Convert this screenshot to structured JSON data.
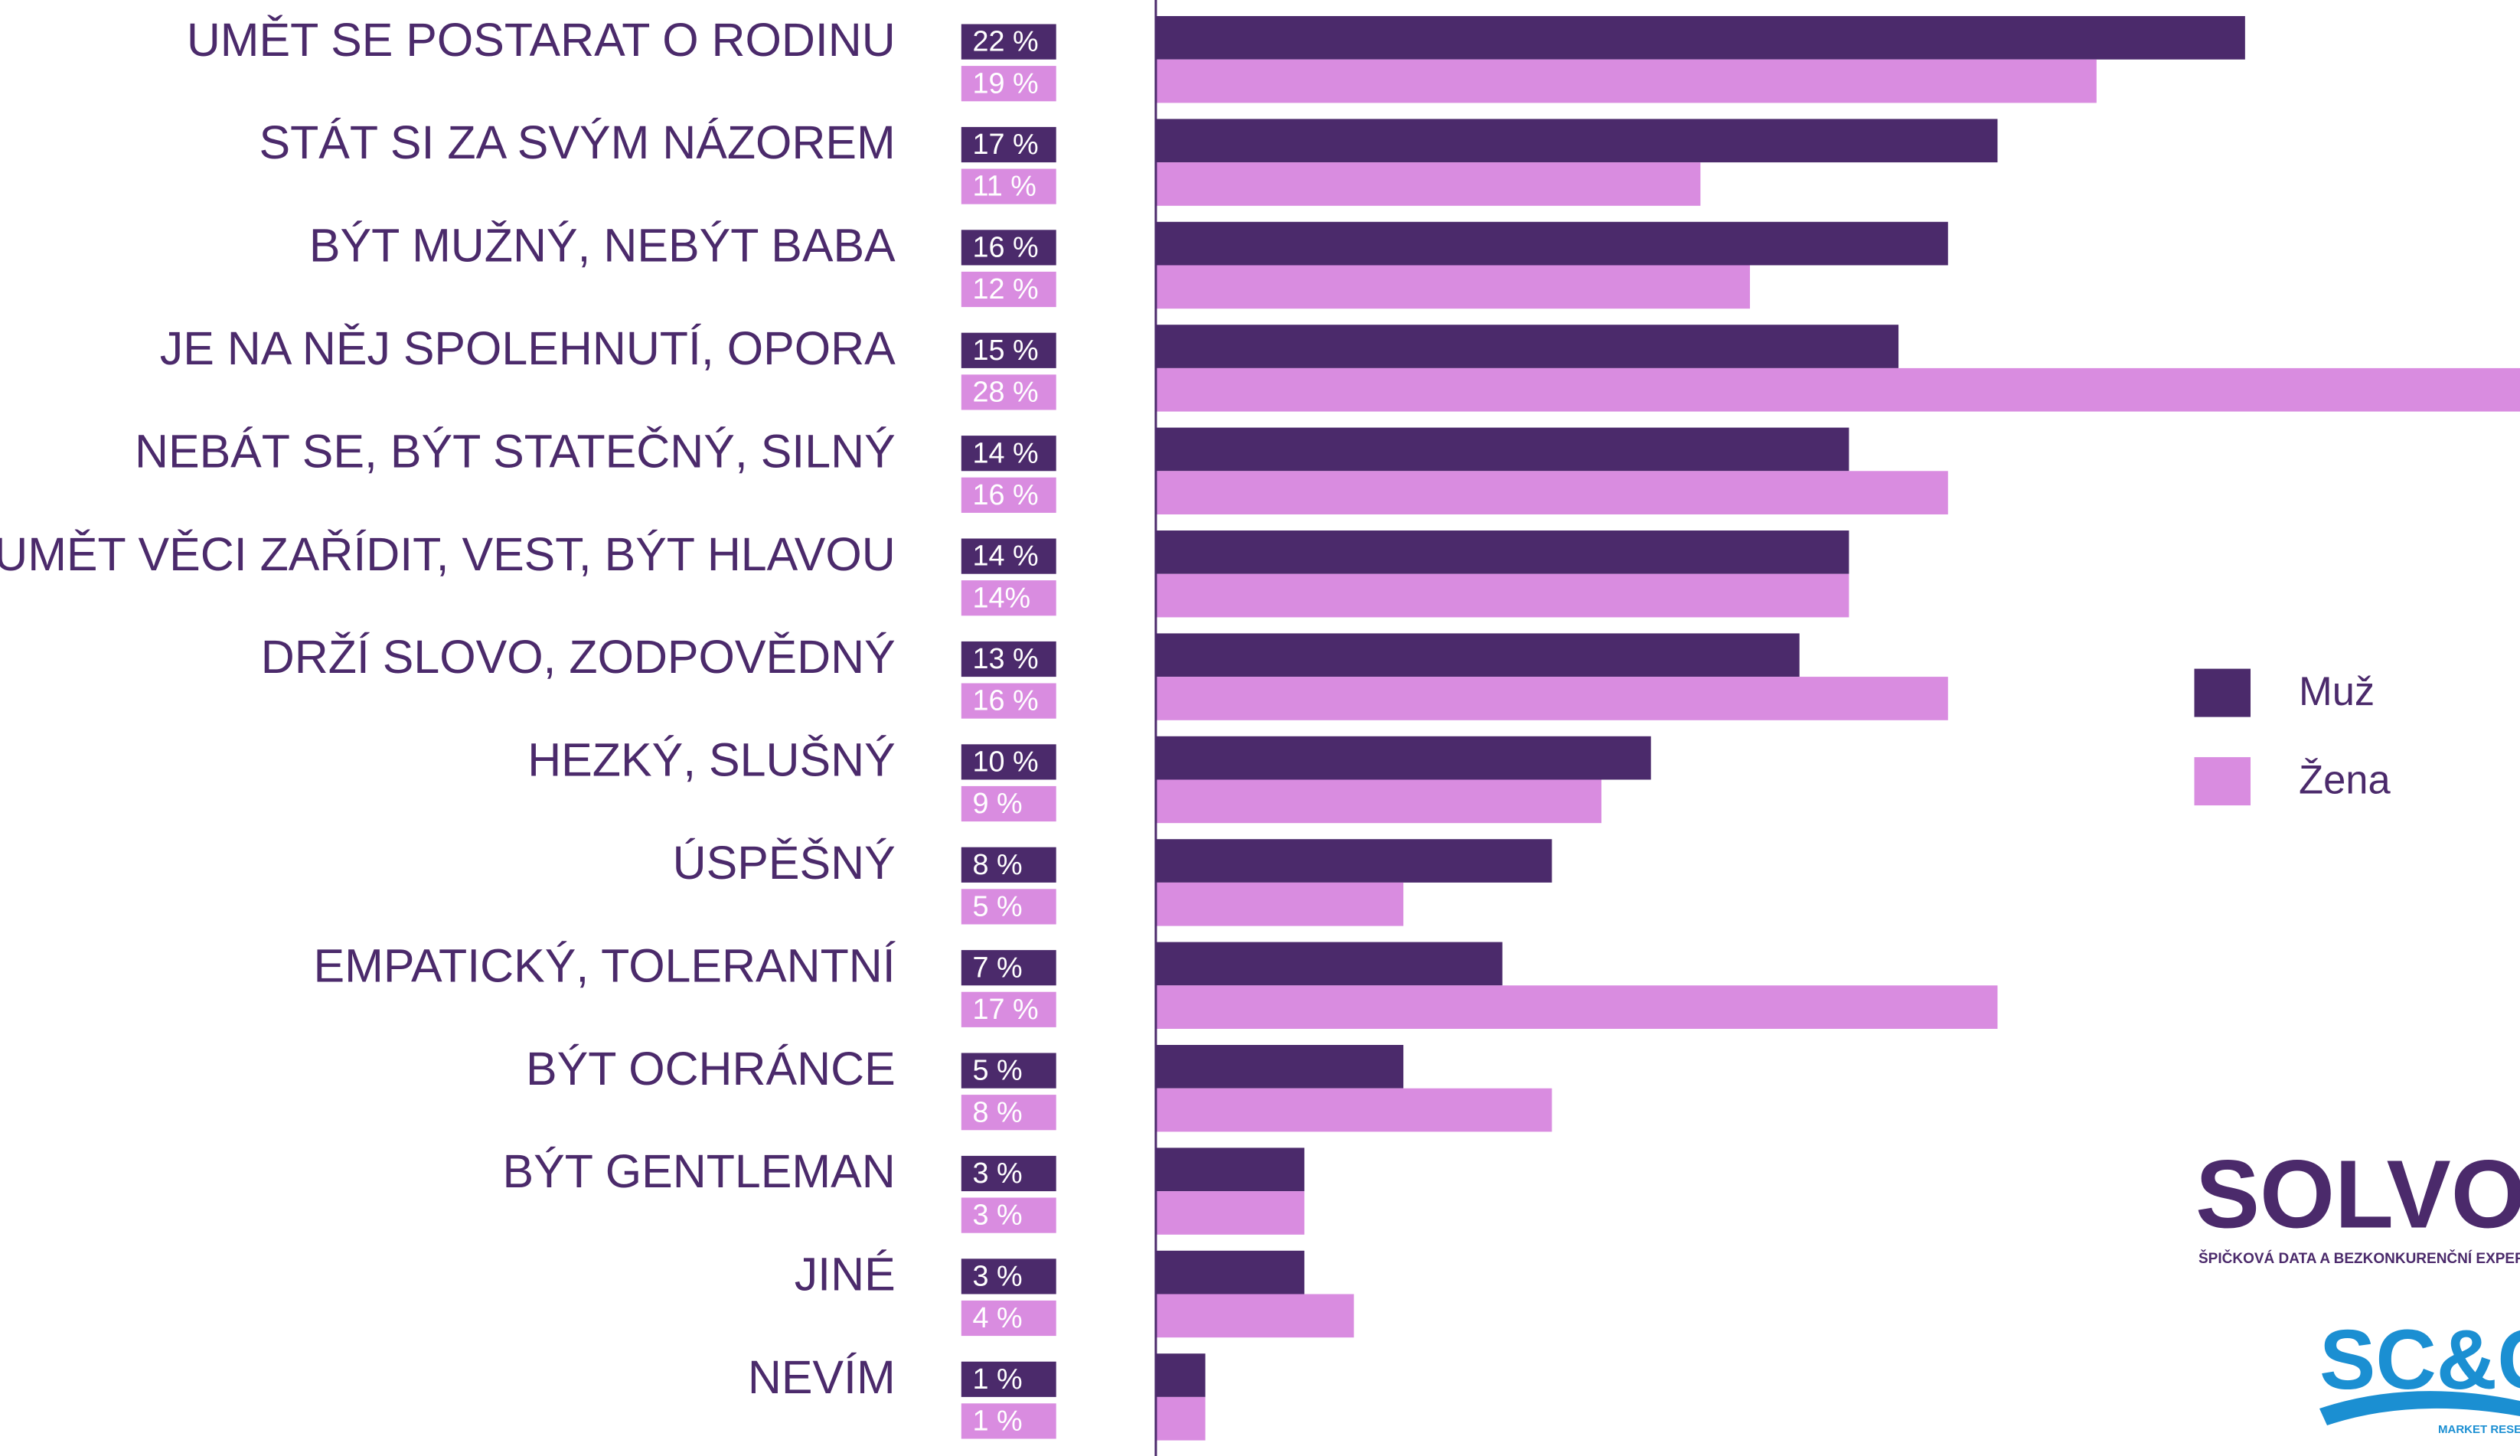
{
  "chart_data": {
    "type": "hbar",
    "categories": [
      "UMĚT SE POSTARAT O RODINU",
      "STÁT SI ZA SVÝM NÁZOREM",
      "BÝT MUŽNÝ, NEBÝT BABA",
      "JE NA NĚJ SPOLEHNUTÍ, OPORA",
      "NEBÁT SE, BÝT STATEČNÝ, SILNÝ",
      "UMĚT VĚCI ZAŘÍDIT, VEST, BÝT HLAVOU",
      "DRŽÍ SLOVO, ZODPOVĚDNÝ",
      "HEZKÝ, SLUŠNÝ",
      "ÚSPĚŠNÝ",
      "EMPATICKÝ, TOLERANTNÍ",
      "BÝT OCHRÁNCE",
      "BÝT GENTLEMAN",
      "JINÉ",
      "NEVÍM"
    ],
    "series": [
      {
        "name": "Muž",
        "color": "#4b2a6b",
        "values": [
          22,
          17,
          16,
          15,
          14,
          14,
          13,
          10,
          8,
          7,
          5,
          3,
          3,
          1
        ],
        "value_labels": [
          "22 %",
          "17 %",
          "16 %",
          "15 %",
          "14 %",
          "14 %",
          "13 %",
          "10 %",
          "8 %",
          "7 %",
          "5 %",
          "3 %",
          "3 %",
          "1 %"
        ]
      },
      {
        "name": "Žena",
        "color": "#d98ce0",
        "values": [
          19,
          11,
          12,
          28,
          16,
          14,
          16,
          9,
          5,
          17,
          8,
          3,
          4,
          1
        ],
        "value_labels": [
          "19 %",
          "11 %",
          "12 %",
          "28 %",
          "16 %",
          "14%",
          "16 %",
          "9 %",
          "5 %",
          "17 %",
          "8 %",
          "3 %",
          "4 %",
          "1 %"
        ]
      }
    ],
    "legend": "right"
  },
  "logos": {
    "solvo": "SOLVO",
    "solvo_tagline": "ŠPIČKOVÁ DATA A BEZKONKURENČNÍ EXPERTÍZA",
    "scc": "SC&C",
    "scc_tagline": "MARKET RESEARCH"
  }
}
